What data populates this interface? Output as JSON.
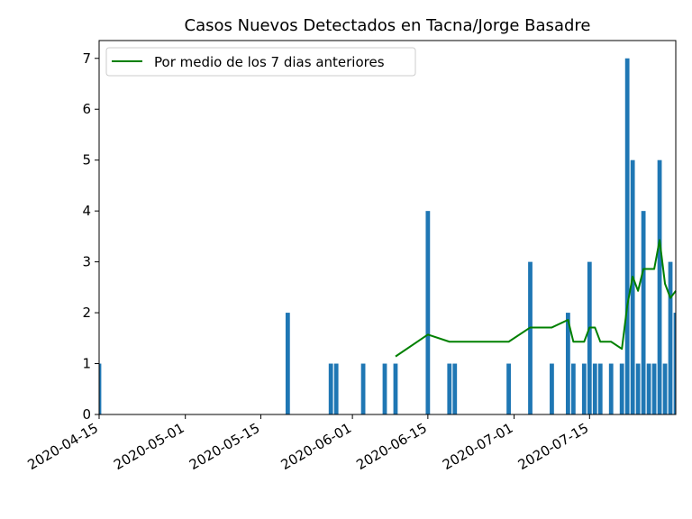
{
  "chart_data": {
    "type": "bar",
    "title": "Casos Nuevos Detectados en Tacna/Jorge Basadre",
    "xlabel": "",
    "ylabel": "",
    "xlim": [
      "2020-04-15",
      "2020-07-31"
    ],
    "ylim": [
      0,
      7.35
    ],
    "yticks": [
      0,
      1,
      2,
      3,
      4,
      5,
      6,
      7
    ],
    "xticks": [
      "2020-04-15",
      "2020-05-01",
      "2020-05-15",
      "2020-06-01",
      "2020-06-15",
      "2020-07-01",
      "2020-07-15"
    ],
    "legend_position": "top-left",
    "grid": false,
    "colors": {
      "bars": "#1f77b4",
      "line": "#008000"
    },
    "bars": [
      {
        "date": "2020-04-15",
        "value": 1
      },
      {
        "date": "2020-05-20",
        "value": 2
      },
      {
        "date": "2020-05-28",
        "value": 1
      },
      {
        "date": "2020-05-29",
        "value": 1
      },
      {
        "date": "2020-06-03",
        "value": 1
      },
      {
        "date": "2020-06-07",
        "value": 1
      },
      {
        "date": "2020-06-09",
        "value": 1
      },
      {
        "date": "2020-06-15",
        "value": 4
      },
      {
        "date": "2020-06-19",
        "value": 1
      },
      {
        "date": "2020-06-20",
        "value": 1
      },
      {
        "date": "2020-06-30",
        "value": 1
      },
      {
        "date": "2020-07-04",
        "value": 3
      },
      {
        "date": "2020-07-08",
        "value": 1
      },
      {
        "date": "2020-07-11",
        "value": 2
      },
      {
        "date": "2020-07-12",
        "value": 1
      },
      {
        "date": "2020-07-14",
        "value": 1
      },
      {
        "date": "2020-07-15",
        "value": 3
      },
      {
        "date": "2020-07-16",
        "value": 1
      },
      {
        "date": "2020-07-17",
        "value": 1
      },
      {
        "date": "2020-07-19",
        "value": 1
      },
      {
        "date": "2020-07-21",
        "value": 1
      },
      {
        "date": "2020-07-22",
        "value": 7
      },
      {
        "date": "2020-07-23",
        "value": 5
      },
      {
        "date": "2020-07-24",
        "value": 1
      },
      {
        "date": "2020-07-25",
        "value": 4
      },
      {
        "date": "2020-07-26",
        "value": 1
      },
      {
        "date": "2020-07-27",
        "value": 1
      },
      {
        "date": "2020-07-28",
        "value": 5
      },
      {
        "date": "2020-07-29",
        "value": 1
      },
      {
        "date": "2020-07-30",
        "value": 3
      },
      {
        "date": "2020-07-31",
        "value": 2
      }
    ],
    "series": [
      {
        "name": "Por medio de los 7 dias anteriores",
        "points": [
          {
            "date": "2020-06-09",
            "value": 1.14
          },
          {
            "date": "2020-06-15",
            "value": 1.57
          },
          {
            "date": "2020-06-19",
            "value": 1.43
          },
          {
            "date": "2020-06-30",
            "value": 1.43
          },
          {
            "date": "2020-07-04",
            "value": 1.71
          },
          {
            "date": "2020-07-08",
            "value": 1.71
          },
          {
            "date": "2020-07-11",
            "value": 1.86
          },
          {
            "date": "2020-07-12",
            "value": 1.43
          },
          {
            "date": "2020-07-14",
            "value": 1.43
          },
          {
            "date": "2020-07-15",
            "value": 1.71
          },
          {
            "date": "2020-07-16",
            "value": 1.71
          },
          {
            "date": "2020-07-17",
            "value": 1.43
          },
          {
            "date": "2020-07-19",
            "value": 1.43
          },
          {
            "date": "2020-07-21",
            "value": 1.29
          },
          {
            "date": "2020-07-22",
            "value": 2.14
          },
          {
            "date": "2020-07-23",
            "value": 2.71
          },
          {
            "date": "2020-07-24",
            "value": 2.43
          },
          {
            "date": "2020-07-25",
            "value": 2.86
          },
          {
            "date": "2020-07-26",
            "value": 2.86
          },
          {
            "date": "2020-07-27",
            "value": 2.86
          },
          {
            "date": "2020-07-28",
            "value": 3.43
          },
          {
            "date": "2020-07-29",
            "value": 2.57
          },
          {
            "date": "2020-07-30",
            "value": 2.29
          },
          {
            "date": "2020-07-31",
            "value": 2.43
          }
        ]
      }
    ]
  }
}
